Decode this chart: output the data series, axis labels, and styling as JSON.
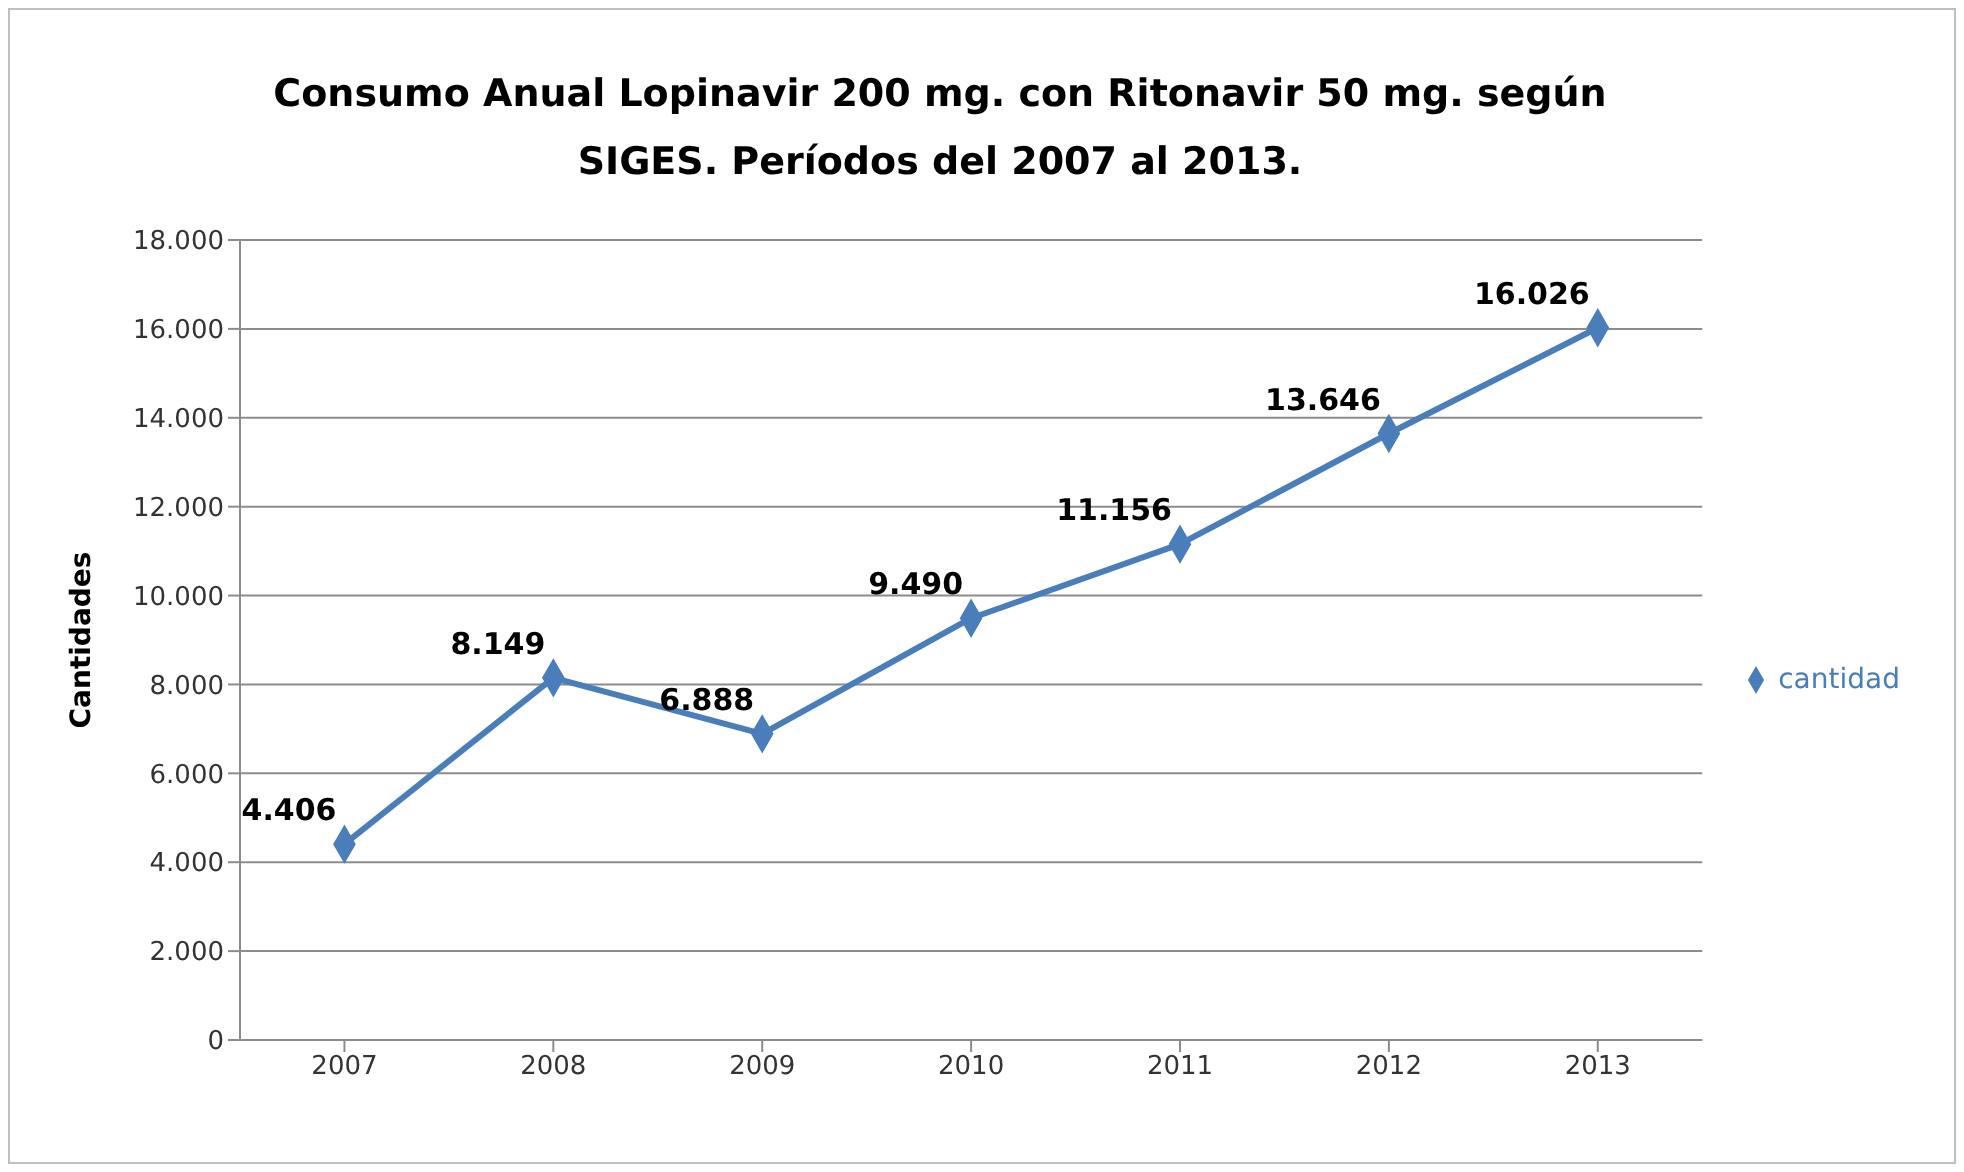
{
  "chart_data": {
    "type": "line",
    "title": "Consumo Anual Lopinavir 200 mg. con Ritonavir 50 mg. según SIGES. Períodos del 2007 al 2013.",
    "ylabel": "Cantidades",
    "categories": [
      "2007",
      "2008",
      "2009",
      "2010",
      "2011",
      "2012",
      "2013"
    ],
    "series": [
      {
        "name": "cantidad",
        "color": "#4a7ebb",
        "values": [
          4406,
          8149,
          6888,
          9490,
          11156,
          13646,
          16026
        ],
        "value_labels": [
          "4.406",
          "8.149",
          "6.888",
          "9.490",
          "11.156",
          "13.646",
          "16.026"
        ]
      }
    ],
    "ylim": [
      0,
      18000
    ],
    "yticks": [
      {
        "value": 0,
        "label": "0"
      },
      {
        "value": 2000,
        "label": "2.000"
      },
      {
        "value": 4000,
        "label": "4.000"
      },
      {
        "value": 6000,
        "label": "6.000"
      },
      {
        "value": 8000,
        "label": "8.000"
      },
      {
        "value": 10000,
        "label": "10.000"
      },
      {
        "value": 12000,
        "label": "12.000"
      },
      {
        "value": 14000,
        "label": "14.000"
      },
      {
        "value": 16000,
        "label": "16.000"
      },
      {
        "value": 18000,
        "label": "18.000"
      }
    ],
    "grid": "y",
    "legend": "right",
    "marker": "diamond",
    "line_style": "solid"
  }
}
